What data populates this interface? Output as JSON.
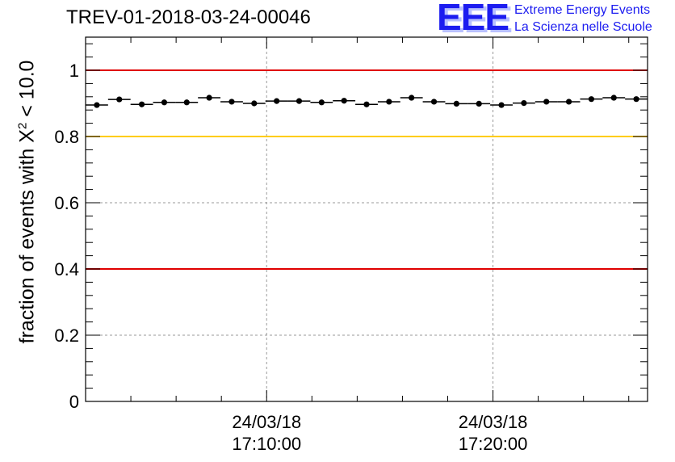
{
  "header": {
    "title": "TREV-01-2018-03-24-00046",
    "logo_text": "EEE",
    "logo_line1": "Extreme Energy Events",
    "logo_line2": "La Scienza nelle Scuole"
  },
  "axes": {
    "ylabel_main": "fraction of events with X",
    "ylabel_sup": "2",
    "ylabel_tail": " < 10.0"
  },
  "colors": {
    "red_line": "#e00000",
    "yellow_line": "#ffcc00",
    "marker": "#000000",
    "logo": "#1c1cf0"
  },
  "chart_data": {
    "type": "scatter",
    "title": "TREV-01-2018-03-24-00046",
    "ylabel": "fraction of events with X² < 10.0",
    "ylim": [
      0,
      1.1
    ],
    "y_ticks": [
      "0",
      "0.2",
      "0.4",
      "0.6",
      "0.8",
      "1"
    ],
    "x_ticks": [
      {
        "date": "24/03/18",
        "time": "17:10:00"
      },
      {
        "date": "24/03/18",
        "time": "17:20:00"
      }
    ],
    "x_range_minutes": [
      -8.0,
      16.83
    ],
    "x_tick_positions_minutes": [
      0,
      10
    ],
    "grid": true,
    "reference_lines": [
      {
        "y": 1.0,
        "color": "red"
      },
      {
        "y": 0.8,
        "color": "yellow"
      },
      {
        "y": 0.4,
        "color": "red"
      }
    ],
    "series": [
      {
        "values": [
          0.895,
          0.912,
          0.897,
          0.903,
          0.903,
          0.917,
          0.905,
          0.9,
          0.907,
          0.907,
          0.903,
          0.908,
          0.897,
          0.905,
          0.917,
          0.905,
          0.899,
          0.899,
          0.895,
          0.901,
          0.905,
          0.905,
          0.913,
          0.917,
          0.913
        ]
      }
    ]
  }
}
